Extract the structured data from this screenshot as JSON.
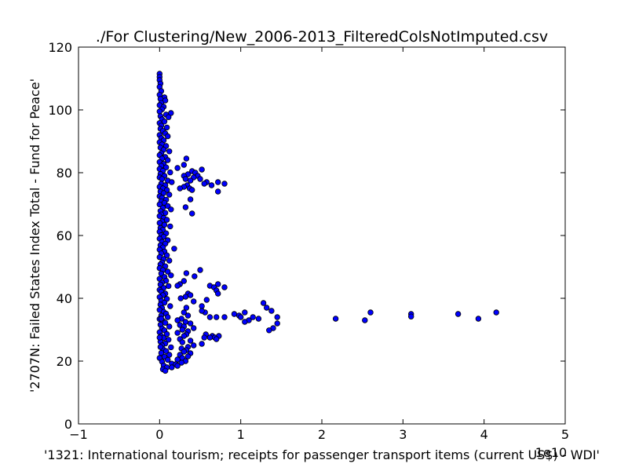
{
  "chart_data": {
    "type": "scatter",
    "title": "./For Clustering/New_2006-2013_FilteredColsNotImputed.csv",
    "xlabel": "'1321: International tourism; receipts for passenger transport items  (current US$) - WDI'",
    "ylabel": "'2707N: Failed States Index Total - Fund for Peace'",
    "x_offset_label": "1e10",
    "xlim": [
      -1,
      5
    ],
    "ylim": [
      0,
      120
    ],
    "xticks": [
      -1,
      0,
      1,
      2,
      3,
      4,
      5
    ],
    "xtick_labels": [
      "−1",
      "0",
      "1",
      "2",
      "3",
      "4",
      "5"
    ],
    "yticks": [
      0,
      20,
      40,
      60,
      80,
      100,
      120
    ],
    "ytick_labels": [
      "0",
      "20",
      "40",
      "60",
      "80",
      "100",
      "120"
    ],
    "marker_color": "#0000ff",
    "grid": false,
    "legend": "none",
    "points": [
      [
        0.0,
        111.5
      ],
      [
        0.0,
        110.5
      ],
      [
        0.0,
        109.5
      ],
      [
        0.01,
        108.4
      ],
      [
        0.0,
        107.3
      ],
      [
        0.02,
        106.0
      ],
      [
        0.0,
        104.8
      ],
      [
        0.06,
        104.0
      ],
      [
        0.01,
        103.5
      ],
      [
        0.07,
        103.0
      ],
      [
        0.02,
        102.2
      ],
      [
        0.0,
        101.5
      ],
      [
        0.05,
        101.0
      ],
      [
        0.03,
        100.2
      ],
      [
        0.0,
        99.5
      ],
      [
        0.14,
        99.0
      ],
      [
        0.08,
        98.5
      ],
      [
        0.01,
        98.0
      ],
      [
        0.11,
        97.7
      ],
      [
        0.03,
        97.0
      ],
      [
        0.06,
        96.3
      ],
      [
        0.0,
        95.8
      ],
      [
        0.02,
        95.0
      ],
      [
        0.09,
        94.4
      ],
      [
        0.01,
        94.0
      ],
      [
        0.04,
        93.3
      ],
      [
        0.07,
        92.5
      ],
      [
        0.0,
        92.0
      ],
      [
        0.1,
        91.6
      ],
      [
        0.02,
        91.0
      ],
      [
        0.05,
        90.3
      ],
      [
        0.0,
        89.7
      ],
      [
        0.03,
        89.0
      ],
      [
        0.08,
        88.5
      ],
      [
        0.01,
        88.0
      ],
      [
        0.05,
        87.3
      ],
      [
        0.12,
        86.8
      ],
      [
        0.02,
        86.2
      ],
      [
        0.0,
        85.6
      ],
      [
        0.07,
        85.0
      ],
      [
        0.03,
        84.5
      ],
      [
        0.1,
        84.0
      ],
      [
        0.0,
        83.4
      ],
      [
        0.05,
        82.8
      ],
      [
        0.02,
        82.2
      ],
      [
        0.08,
        81.7
      ],
      [
        0.0,
        81.2
      ],
      [
        0.04,
        80.6
      ],
      [
        0.13,
        80.1
      ],
      [
        0.01,
        79.6
      ],
      [
        0.06,
        79.0
      ],
      [
        0.0,
        78.5
      ],
      [
        0.03,
        78.0
      ],
      [
        0.1,
        77.5
      ],
      [
        0.15,
        77.0
      ],
      [
        0.02,
        76.5
      ],
      [
        0.07,
        76.0
      ],
      [
        0.0,
        75.5
      ],
      [
        0.04,
        75.0
      ],
      [
        0.09,
        74.5
      ],
      [
        0.01,
        74.0
      ],
      [
        0.05,
        73.5
      ],
      [
        0.12,
        73.0
      ],
      [
        0.0,
        72.5
      ],
      [
        0.03,
        72.0
      ],
      [
        0.08,
        71.4
      ],
      [
        0.02,
        70.9
      ],
      [
        0.06,
        70.4
      ],
      [
        0.0,
        69.9
      ],
      [
        0.1,
        69.4
      ],
      [
        0.04,
        68.8
      ],
      [
        0.14,
        68.3
      ],
      [
        0.01,
        67.8
      ],
      [
        0.07,
        67.2
      ],
      [
        0.02,
        66.7
      ],
      [
        0.0,
        66.2
      ],
      [
        0.05,
        65.6
      ],
      [
        0.09,
        65.0
      ],
      [
        0.03,
        64.5
      ],
      [
        0.0,
        64.0
      ],
      [
        0.06,
        63.4
      ],
      [
        0.13,
        62.9
      ],
      [
        0.01,
        62.4
      ],
      [
        0.04,
        61.8
      ],
      [
        0.0,
        61.2
      ],
      [
        0.08,
        60.7
      ],
      [
        0.02,
        60.1
      ],
      [
        0.05,
        59.6
      ],
      [
        0.0,
        59.0
      ],
      [
        0.1,
        58.5
      ],
      [
        0.03,
        58.0
      ],
      [
        0.07,
        57.4
      ],
      [
        0.01,
        56.9
      ],
      [
        0.18,
        55.8
      ],
      [
        0.04,
        56.2
      ],
      [
        0.0,
        55.5
      ],
      [
        0.06,
        54.9
      ],
      [
        0.02,
        54.3
      ],
      [
        0.09,
        53.7
      ],
      [
        0.0,
        53.1
      ],
      [
        0.05,
        52.5
      ],
      [
        0.12,
        52.0
      ],
      [
        0.03,
        51.4
      ],
      [
        0.01,
        50.8
      ],
      [
        0.07,
        50.2
      ],
      [
        0.0,
        49.6
      ],
      [
        0.04,
        49.0
      ],
      [
        0.1,
        48.5
      ],
      [
        0.02,
        47.9
      ],
      [
        0.14,
        47.3
      ],
      [
        0.06,
        46.8
      ],
      [
        0.0,
        46.2
      ],
      [
        0.08,
        45.6
      ],
      [
        0.03,
        45.0
      ],
      [
        0.01,
        44.4
      ],
      [
        0.11,
        43.9
      ],
      [
        0.05,
        43.3
      ],
      [
        0.0,
        42.7
      ],
      [
        0.02,
        42.1
      ],
      [
        0.07,
        41.5
      ],
      [
        0.04,
        41.0
      ],
      [
        0.0,
        40.4
      ],
      [
        0.09,
        39.8
      ],
      [
        0.02,
        39.2
      ],
      [
        0.06,
        38.6
      ],
      [
        0.01,
        38.0
      ],
      [
        0.13,
        37.5
      ],
      [
        0.03,
        36.9
      ],
      [
        0.0,
        36.3
      ],
      [
        0.05,
        35.7
      ],
      [
        0.08,
        35.1
      ],
      [
        0.02,
        34.5
      ],
      [
        0.1,
        34.0
      ],
      [
        0.0,
        33.4
      ],
      [
        0.04,
        32.8
      ],
      [
        0.07,
        32.2
      ],
      [
        0.01,
        31.6
      ],
      [
        0.12,
        31.0
      ],
      [
        0.03,
        30.4
      ],
      [
        0.06,
        29.8
      ],
      [
        0.0,
        29.2
      ],
      [
        0.09,
        28.6
      ],
      [
        0.02,
        28.0
      ],
      [
        0.05,
        27.4
      ],
      [
        0.11,
        26.8
      ],
      [
        0.01,
        26.2
      ],
      [
        0.07,
        25.6
      ],
      [
        0.03,
        25.0
      ],
      [
        0.14,
        24.4
      ],
      [
        0.04,
        23.8
      ],
      [
        0.08,
        23.2
      ],
      [
        0.02,
        22.6
      ],
      [
        0.12,
        22.0
      ],
      [
        0.06,
        21.4
      ],
      [
        0.0,
        21.0
      ],
      [
        0.1,
        20.4
      ],
      [
        0.03,
        19.8
      ],
      [
        0.15,
        19.2
      ],
      [
        0.05,
        18.6
      ],
      [
        0.09,
        18.0
      ],
      [
        0.04,
        17.4
      ],
      [
        0.07,
        16.9
      ],
      [
        0.02,
        33.5
      ],
      [
        0.0,
        27.5
      ],
      [
        0.01,
        24.5
      ],
      [
        0.33,
        84.5
      ],
      [
        0.3,
        82.5
      ],
      [
        0.22,
        81.5
      ],
      [
        0.52,
        81.0
      ],
      [
        0.4,
        80.5
      ],
      [
        0.44,
        80.0
      ],
      [
        0.35,
        79.5
      ],
      [
        0.3,
        79.0
      ],
      [
        0.47,
        79.0
      ],
      [
        0.42,
        78.5
      ],
      [
        0.32,
        78.0
      ],
      [
        0.5,
        78.0
      ],
      [
        0.38,
        77.5
      ],
      [
        0.58,
        77.0
      ],
      [
        0.72,
        77.0
      ],
      [
        0.55,
        76.5
      ],
      [
        0.8,
        76.5
      ],
      [
        0.34,
        76.0
      ],
      [
        0.64,
        76.0
      ],
      [
        0.3,
        75.5
      ],
      [
        0.25,
        75.0
      ],
      [
        0.37,
        75.0
      ],
      [
        0.4,
        74.5
      ],
      [
        0.72,
        74.0
      ],
      [
        0.38,
        71.5
      ],
      [
        0.32,
        69.0
      ],
      [
        0.4,
        67.0
      ],
      [
        0.5,
        49.0
      ],
      [
        0.33,
        48.0
      ],
      [
        0.43,
        47.0
      ],
      [
        0.3,
        45.5
      ],
      [
        0.25,
        44.5
      ],
      [
        0.72,
        44.5
      ],
      [
        0.22,
        44.0
      ],
      [
        0.62,
        44.0
      ],
      [
        0.67,
        43.5
      ],
      [
        0.8,
        43.5
      ],
      [
        0.7,
        42.5
      ],
      [
        0.72,
        41.5
      ],
      [
        0.35,
        41.5
      ],
      [
        0.38,
        41.0
      ],
      [
        0.32,
        40.5
      ],
      [
        0.26,
        40.0
      ],
      [
        0.58,
        39.5
      ],
      [
        0.42,
        39.0
      ],
      [
        0.52,
        37.5
      ],
      [
        0.33,
        37.0
      ],
      [
        1.28,
        38.5
      ],
      [
        1.32,
        37.0
      ],
      [
        1.38,
        36.0
      ],
      [
        1.05,
        35.5
      ],
      [
        0.92,
        35.0
      ],
      [
        0.98,
        34.5
      ],
      [
        1.45,
        34.0
      ],
      [
        0.62,
        34.0
      ],
      [
        0.7,
        34.0
      ],
      [
        0.8,
        34.0
      ],
      [
        1.0,
        34.0
      ],
      [
        1.15,
        34.0
      ],
      [
        1.22,
        33.5
      ],
      [
        1.1,
        33.0
      ],
      [
        1.05,
        32.5
      ],
      [
        1.45,
        32.0
      ],
      [
        1.4,
        30.5
      ],
      [
        1.35,
        29.8
      ],
      [
        0.56,
        35.5
      ],
      [
        0.52,
        36.0
      ],
      [
        2.17,
        33.5
      ],
      [
        2.53,
        33.0
      ],
      [
        2.6,
        35.5
      ],
      [
        3.1,
        35.0
      ],
      [
        3.1,
        34.2
      ],
      [
        3.68,
        35.0
      ],
      [
        3.93,
        33.5
      ],
      [
        4.15,
        35.5
      ],
      [
        0.3,
        35.5
      ],
      [
        0.35,
        34.5
      ],
      [
        0.27,
        33.5
      ],
      [
        0.22,
        33.0
      ],
      [
        0.32,
        32.5
      ],
      [
        0.38,
        32.0
      ],
      [
        0.25,
        31.5
      ],
      [
        0.3,
        31.0
      ],
      [
        0.42,
        30.5
      ],
      [
        0.28,
        30.0
      ],
      [
        0.35,
        29.5
      ],
      [
        0.22,
        29.0
      ],
      [
        0.33,
        28.5
      ],
      [
        0.57,
        28.5
      ],
      [
        0.65,
        28.0
      ],
      [
        0.73,
        28.0
      ],
      [
        0.55,
        27.5
      ],
      [
        0.62,
        27.5
      ],
      [
        0.68,
        27.5
      ],
      [
        0.7,
        27.0
      ],
      [
        0.3,
        28.0
      ],
      [
        0.25,
        27.0
      ],
      [
        0.38,
        26.5
      ],
      [
        0.28,
        26.0
      ],
      [
        0.52,
        25.5
      ],
      [
        0.42,
        25.0
      ],
      [
        0.35,
        24.5
      ],
      [
        0.27,
        24.0
      ],
      [
        0.33,
        23.5
      ],
      [
        0.3,
        23.0
      ],
      [
        0.38,
        22.5
      ],
      [
        0.25,
        22.0
      ],
      [
        0.35,
        21.5
      ],
      [
        0.28,
        21.0
      ],
      [
        0.22,
        20.5
      ],
      [
        0.32,
        20.0
      ],
      [
        0.27,
        19.5
      ],
      [
        0.2,
        19.0
      ],
      [
        0.15,
        18.0
      ],
      [
        0.22,
        18.5
      ]
    ]
  }
}
